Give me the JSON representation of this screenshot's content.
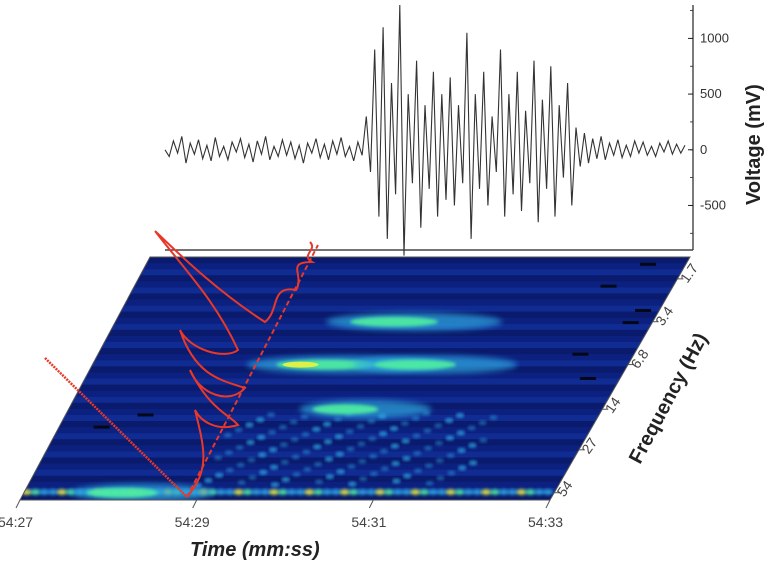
{
  "chart_data": [
    {
      "type": "line",
      "panel": "voltage",
      "ylabel": "Voltage (mV)",
      "ylim": [
        -900,
        1300
      ],
      "yticks": [
        "1000",
        "500",
        "0",
        "-500"
      ],
      "ytick_values": [
        1000,
        500,
        0,
        -500
      ],
      "y_axis_side": "right",
      "series": [
        {
          "values": [
            0,
            -60,
            80,
            -30,
            120,
            -120,
            60,
            -40,
            90,
            -80,
            40,
            -100,
            110,
            -60,
            30,
            -90,
            70,
            -20,
            100,
            -70,
            50,
            -110,
            80,
            -40,
            120,
            -90,
            30,
            -60,
            90,
            -50,
            70,
            -80,
            40,
            -120,
            60,
            -30,
            100,
            -70,
            50,
            -90,
            80,
            -40,
            110,
            -60,
            30,
            -100,
            70,
            -50,
            300,
            -200,
            900,
            -600,
            1100,
            -800,
            600,
            -400,
            1300,
            -950,
            500,
            -300,
            800,
            -700,
            400,
            -350,
            700,
            -600,
            500,
            -450,
            650,
            -500,
            400,
            -300,
            1050,
            -800,
            500,
            -350,
            700,
            -500,
            300,
            -200,
            900,
            -600,
            500,
            -400,
            700,
            -550,
            350,
            -300,
            800,
            -650,
            450,
            -350,
            750,
            -600,
            400,
            -250,
            600,
            -500,
            200,
            -150,
            150,
            -120,
            100,
            -80,
            120,
            -90,
            60,
            -50,
            90,
            -70,
            40,
            -60,
            80,
            -30,
            70,
            -50,
            30,
            -60,
            60,
            -20,
            80,
            -40,
            50,
            -30,
            40
          ]
        }
      ]
    },
    {
      "type": "heatmap",
      "panel": "spectrogram",
      "xlabel": "Time (mm:ss)",
      "ylabel": "Frequency (Hz)",
      "x_ticks": [
        "54:27",
        "54:29",
        "54:31",
        "54:33"
      ],
      "y_ticks": [
        "1.7",
        "3.4",
        "6.8",
        "14",
        "27",
        "54"
      ],
      "colormap": [
        "#0b1a6e",
        "#1a3cc8",
        "#2fa8e0",
        "#4ff0a0",
        "#e8f040"
      ],
      "features": [
        {
          "time": "54:30",
          "freq_hz": 3.4,
          "intensity": 0.8
        },
        {
          "time": "54:29.5",
          "freq_hz": 6.8,
          "intensity": 0.9
        },
        {
          "time": "54:30.5",
          "freq_hz": 6.8,
          "intensity": 0.75
        },
        {
          "time": "54:30",
          "freq_hz": 14,
          "intensity": 0.6
        },
        {
          "time": "54:28",
          "freq_hz": 54,
          "intensity": 0.65
        }
      ]
    }
  ],
  "overlay_color": "#e8382a"
}
